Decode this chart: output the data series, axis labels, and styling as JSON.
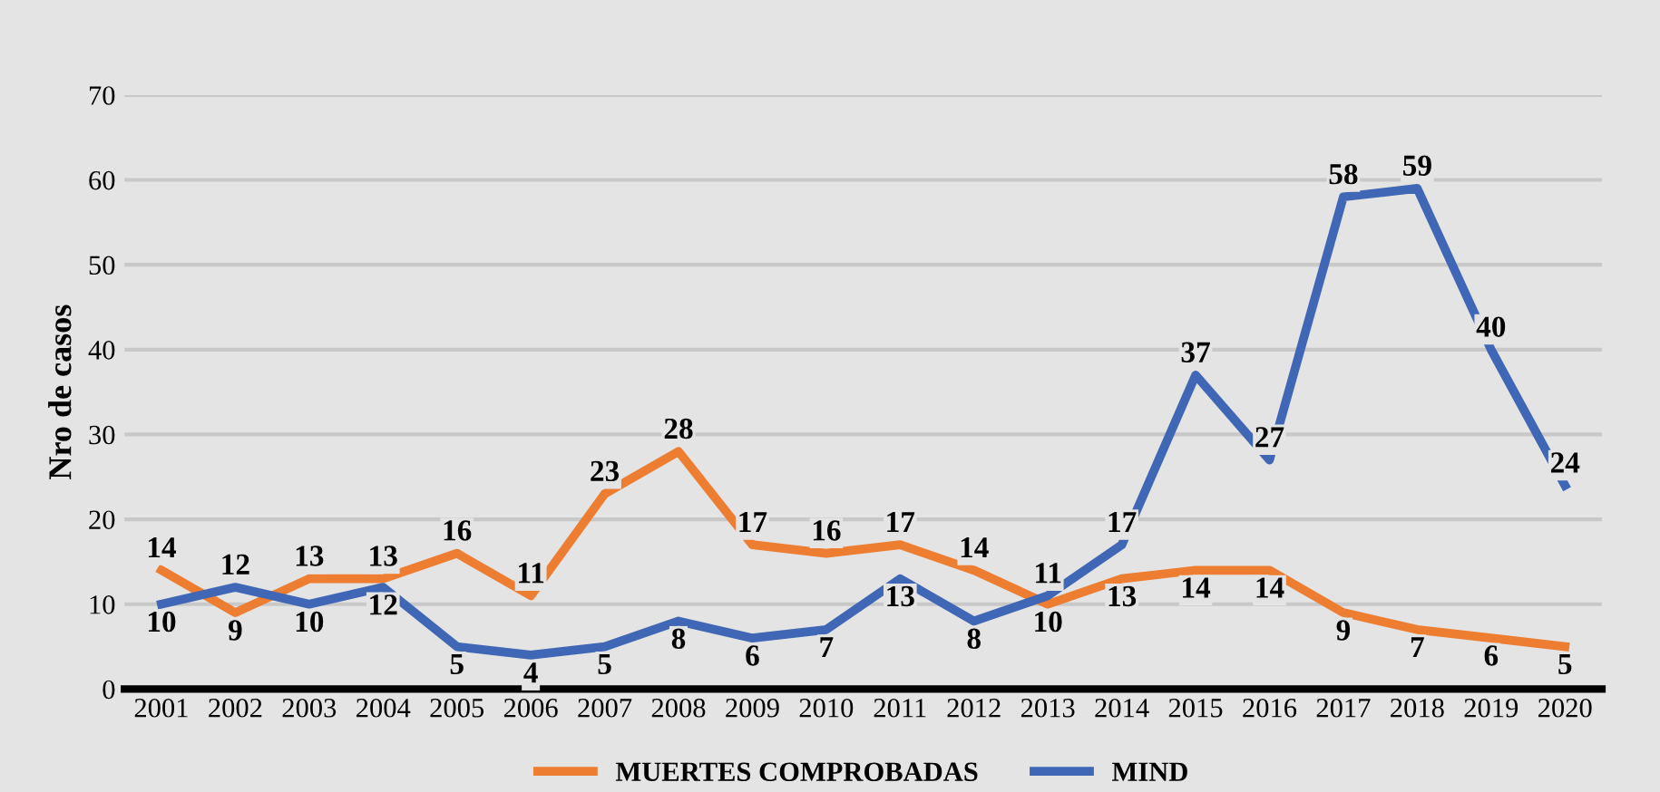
{
  "chart_data": {
    "type": "line",
    "ylabel": "Nro de casos",
    "categories": [
      "2001",
      "2002",
      "2003",
      "2004",
      "2005",
      "2006",
      "2007",
      "2008",
      "2009",
      "2010",
      "2011",
      "2012",
      "2013",
      "2014",
      "2015",
      "2016",
      "2017",
      "2018",
      "2019",
      "2020"
    ],
    "series": [
      {
        "name": "MUERTES COMPROBADAS",
        "color": "#ed7d31",
        "values": [
          14,
          9,
          13,
          13,
          16,
          11,
          23,
          28,
          17,
          16,
          17,
          14,
          10,
          13,
          14,
          14,
          9,
          7,
          6,
          5
        ]
      },
      {
        "name": "MIND",
        "color": "#3f67b5",
        "values": [
          10,
          12,
          10,
          12,
          5,
          4,
          5,
          8,
          6,
          7,
          13,
          8,
          11,
          17,
          37,
          27,
          58,
          59,
          40,
          24
        ]
      }
    ],
    "ylim": [
      0,
      70
    ],
    "yticks": [
      0,
      10,
      20,
      30,
      40,
      50,
      60,
      70
    ],
    "grid": "y",
    "legend": "bottom",
    "data_labels": true,
    "marker": "none",
    "line_style": "solid"
  }
}
